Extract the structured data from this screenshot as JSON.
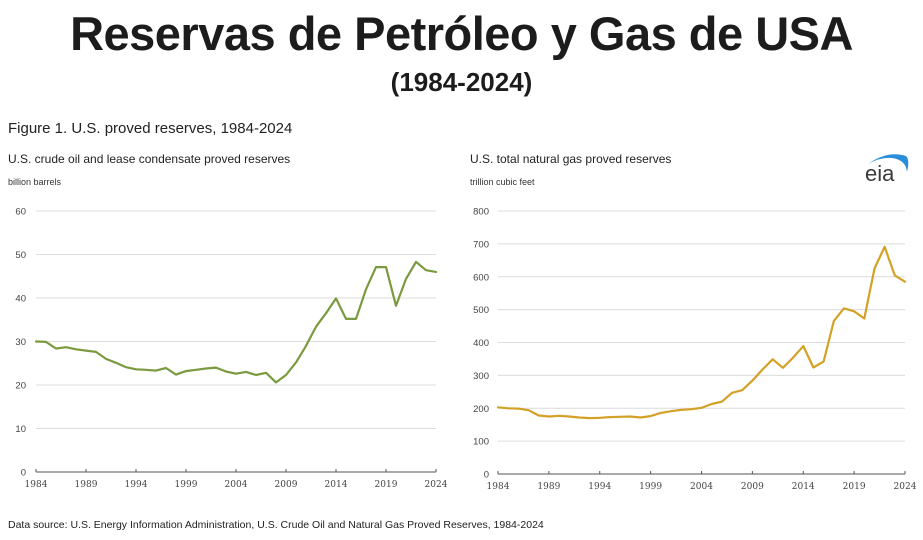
{
  "header": {
    "title": "Reservas de Petróleo y Gas de USA",
    "subtitle": "(1984-2024)"
  },
  "figure_title": "Figure 1. U.S. proved reserves, 1984-2024",
  "logo_text": "eia",
  "source": "Data source: U.S. Energy Information Administration, U.S. Crude Oil and Natural Gas Proved Reserves, 1984-2024",
  "colors": {
    "oil": "#7a9a3f",
    "gas": "#d4a127",
    "grid": "#dcdcdc",
    "axis": "#555555",
    "logo_arc": "#2a8fd8",
    "logo_text": "#3a3a3a"
  },
  "chart_data": [
    {
      "type": "line",
      "title": "U.S. crude oil and lease condensate proved reserves",
      "ylabel": "billion barrels",
      "xlabel": "",
      "ylim": [
        0,
        60
      ],
      "yticks": [
        0,
        10,
        20,
        30,
        40,
        50,
        60
      ],
      "xticks": [
        1984,
        1989,
        1994,
        1999,
        2004,
        2009,
        2014,
        2019,
        2024
      ],
      "grid": true,
      "series": [
        {
          "name": "Crude oil and lease condensate",
          "x": [
            1984,
            1985,
            1986,
            1987,
            1988,
            1989,
            1990,
            1991,
            1992,
            1993,
            1994,
            1995,
            1996,
            1997,
            1998,
            1999,
            2000,
            2001,
            2002,
            2003,
            2004,
            2005,
            2006,
            2007,
            2008,
            2009,
            2010,
            2011,
            2012,
            2013,
            2014,
            2015,
            2016,
            2017,
            2018,
            2019,
            2020,
            2021,
            2022,
            2023,
            2024
          ],
          "values": [
            30.0,
            29.9,
            28.4,
            28.7,
            28.2,
            27.9,
            27.6,
            26.0,
            25.1,
            24.1,
            23.6,
            23.5,
            23.3,
            23.9,
            22.4,
            23.2,
            23.5,
            23.8,
            24.0,
            23.1,
            22.6,
            23.0,
            22.3,
            22.8,
            20.6,
            22.3,
            25.2,
            29.0,
            33.4,
            36.5,
            39.9,
            35.2,
            35.2,
            42.0,
            47.1,
            47.1,
            38.2,
            44.4,
            48.3,
            46.4,
            46.0
          ]
        }
      ]
    },
    {
      "type": "line",
      "title": "U.S. total natural gas proved reserves",
      "ylabel": "trillion cubic feet",
      "xlabel": "",
      "ylim": [
        0,
        800
      ],
      "yticks": [
        0,
        100,
        200,
        300,
        400,
        500,
        600,
        700,
        800
      ],
      "xticks": [
        1984,
        1989,
        1994,
        1999,
        2004,
        2009,
        2014,
        2019,
        2024
      ],
      "grid": true,
      "series": [
        {
          "name": "Total natural gas",
          "x": [
            1984,
            1985,
            1986,
            1987,
            1988,
            1989,
            1990,
            1991,
            1992,
            1993,
            1994,
            1995,
            1996,
            1997,
            1998,
            1999,
            2000,
            2001,
            2002,
            2003,
            2004,
            2005,
            2006,
            2007,
            2008,
            2009,
            2010,
            2011,
            2012,
            2013,
            2014,
            2015,
            2016,
            2017,
            2018,
            2019,
            2020,
            2021,
            2022,
            2023,
            2024
          ],
          "values": [
            203,
            200,
            199,
            194,
            178,
            175,
            177,
            175,
            172,
            170,
            171,
            173,
            174,
            175,
            172,
            176,
            186,
            191,
            195,
            197,
            201,
            213,
            220,
            247,
            255,
            284,
            318,
            349,
            323,
            354,
            389,
            324,
            342,
            465,
            504,
            495,
            473,
            625,
            691,
            604,
            585
          ]
        }
      ]
    }
  ]
}
